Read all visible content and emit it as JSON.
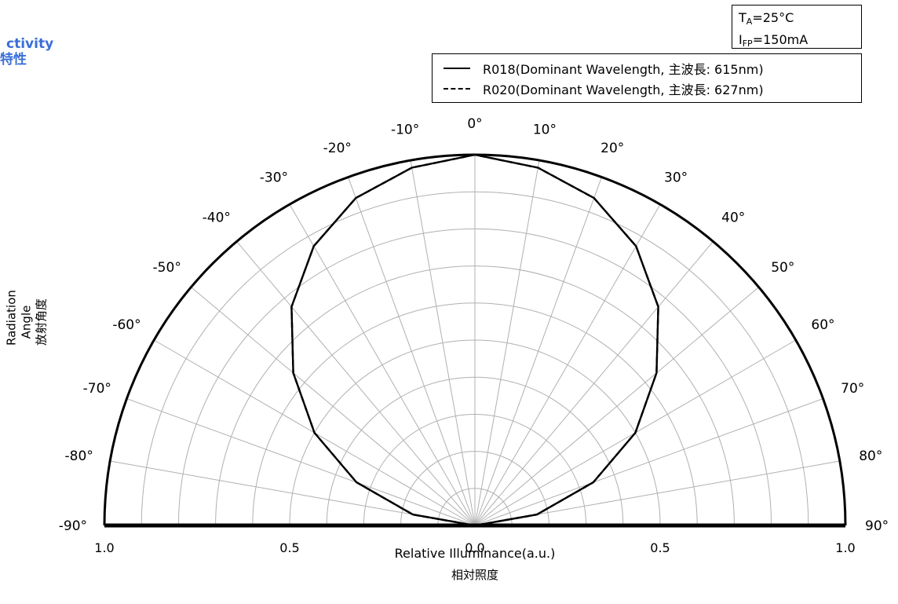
{
  "header": {
    "title_en": "ctivity",
    "title_jp": "特性"
  },
  "conditions": {
    "temp_label": "T",
    "temp_sub": "A",
    "temp_value": "=25°C",
    "current_label": "I",
    "current_sub": "FP",
    "current_value": "=150mA"
  },
  "chart_data": {
    "type": "polar",
    "angle_range_deg": [
      -90,
      90
    ],
    "angle_step_deg": 10,
    "radial_range": [
      0,
      1.0
    ],
    "radial_grid_step": 0.1,
    "angle_labels": [
      "-90°",
      "-80°",
      "-70°",
      "-60°",
      "-50°",
      "-40°",
      "-30°",
      "-20°",
      "-10°",
      "0°",
      "10°",
      "20°",
      "30°",
      "40°",
      "50°",
      "60°",
      "70°",
      "80°",
      "90°"
    ],
    "radial_tick_labels": {
      "left": [
        "1.0",
        "0.5",
        "0.0"
      ],
      "right": [
        "0.5",
        "1.0"
      ]
    },
    "xlabel_en": "Relative Illuminance(a.u.)",
    "xlabel_jp": "相対照度",
    "ylabel_en": "Radiation Angle",
    "ylabel_jp": "放射角度",
    "legend_placement": "top-right",
    "grid": true,
    "series": [
      {
        "name": "R018(Dominant Wavelength, 主波長: 615nm)",
        "style": "solid",
        "angles_deg": [
          -90,
          -80,
          -70,
          -60,
          -50,
          -40,
          -30,
          -20,
          -10,
          0,
          10,
          20,
          30,
          40,
          50,
          60,
          70,
          80,
          90
        ],
        "values": [
          0.0,
          0.17,
          0.34,
          0.5,
          0.64,
          0.77,
          0.87,
          0.94,
          0.98,
          1.0,
          0.98,
          0.94,
          0.87,
          0.77,
          0.64,
          0.5,
          0.34,
          0.17,
          0.0
        ]
      },
      {
        "name": "R020(Dominant Wavelength, 主波長: 627nm)",
        "style": "dashed",
        "angles_deg": [
          -90,
          -80,
          -70,
          -60,
          -50,
          -40,
          -30,
          -20,
          -10,
          0,
          10,
          20,
          30,
          40,
          50,
          60,
          70,
          80,
          90
        ],
        "values": [
          0.0,
          0.17,
          0.34,
          0.5,
          0.64,
          0.77,
          0.87,
          0.94,
          0.98,
          1.0,
          0.98,
          0.94,
          0.87,
          0.77,
          0.64,
          0.5,
          0.34,
          0.17,
          0.0
        ]
      }
    ]
  }
}
